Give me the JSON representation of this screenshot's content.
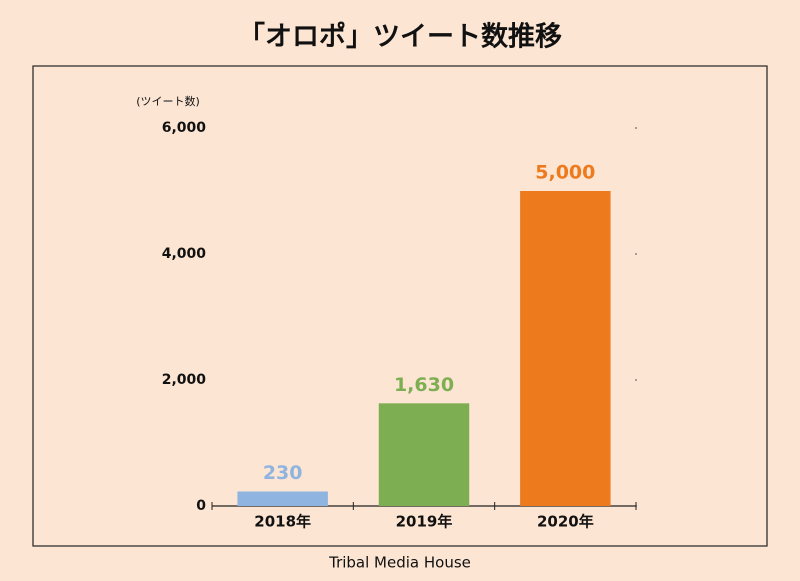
{
  "chart_data": {
    "type": "bar",
    "title": "「オロポ」ツイート数推移",
    "y_label": "(ツイート数)",
    "categories": [
      "2018年",
      "2019年",
      "2020年"
    ],
    "values": [
      230,
      1630,
      5000
    ],
    "value_labels": [
      "230",
      "1,630",
      "5,000"
    ],
    "colors": [
      "#8fb4e0",
      "#7daf52",
      "#ee7a1e"
    ],
    "ylim": [
      0,
      6000
    ],
    "yticks": [
      0,
      {
        "value": 2000,
        "label": "2,000"
      },
      {
        "value": 4000,
        "label": "4,000"
      },
      {
        "value": 6000,
        "label": "6,000"
      }
    ],
    "source": "Tribal Media House"
  }
}
